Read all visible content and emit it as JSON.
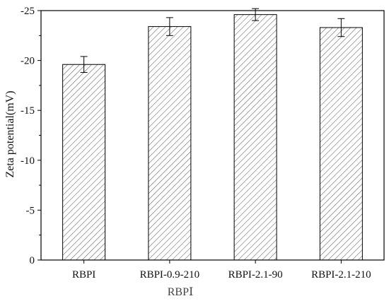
{
  "chart_data": {
    "type": "bar",
    "categories": [
      "RBPI",
      "RBPI-0.9-210",
      "RBPI-2.1-90",
      "RBPI-2.1-210"
    ],
    "values": [
      -19.6,
      -23.4,
      -24.6,
      -23.3
    ],
    "errors": [
      0.8,
      0.9,
      0.6,
      0.9
    ],
    "title": "",
    "xlabel": "RBPⅠ",
    "ylabel": "Zeta potential(mV)",
    "ylim": [
      0,
      -25
    ],
    "yticks": [
      0,
      -5,
      -10,
      -15,
      -20,
      -25
    ],
    "ytick_labels": [
      "0",
      "-5",
      "-10",
      "-15",
      "-20",
      "-25"
    ],
    "bar_fill": "hatched",
    "colors": {
      "bar_stroke": "#000000",
      "hatch": "#555555",
      "background": "#ffffff"
    },
    "grid": false,
    "legend": "none"
  }
}
